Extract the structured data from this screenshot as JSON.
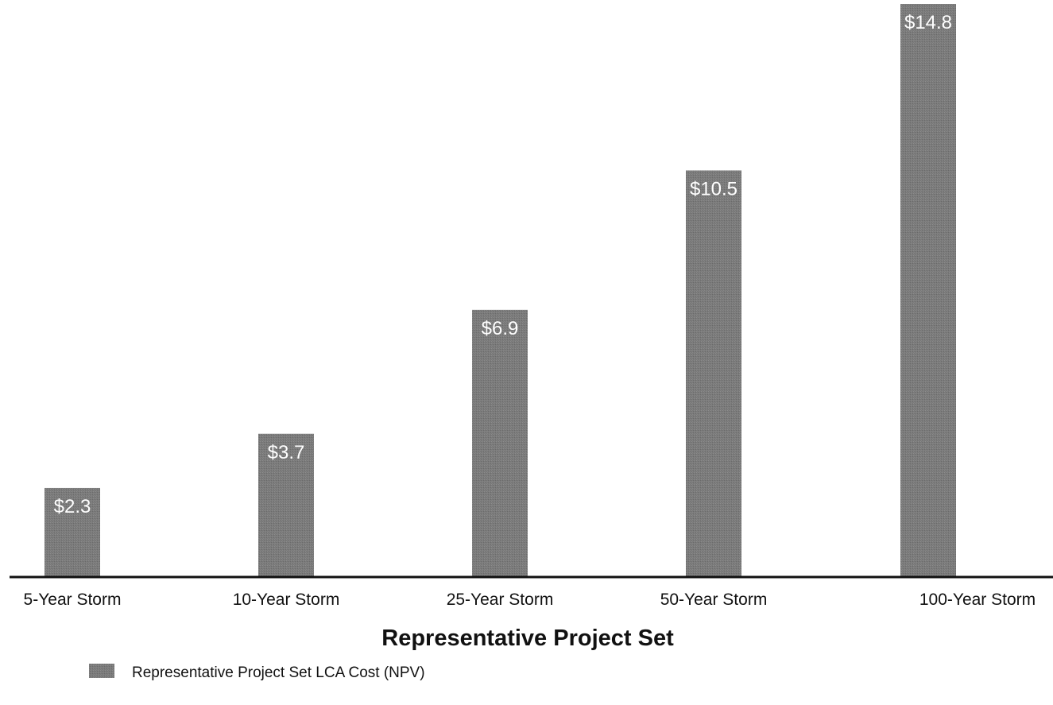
{
  "chart_data": {
    "type": "bar",
    "categories": [
      "5-Year Storm",
      "10-Year Storm",
      "25-Year Storm",
      "50-Year Storm",
      "100-Year Storm"
    ],
    "series": [
      {
        "name": "Representative Project Set LCA Cost (NPV)",
        "values": [
          2.3,
          3.7,
          6.9,
          10.5,
          14.8
        ],
        "data_labels": [
          "$2.3",
          "$3.7",
          "$6.9",
          "$10.5",
          "$14.8"
        ],
        "color": "#7a7a7a"
      }
    ],
    "title": "",
    "xlabel": "Representative Project Set",
    "ylabel": "",
    "ylim": [
      0,
      14.8
    ],
    "grid": false,
    "legend_position": "bottom-left"
  },
  "colors": {
    "bar": "#7a7a7a",
    "axis": "#111111",
    "background": "#ffffff"
  }
}
